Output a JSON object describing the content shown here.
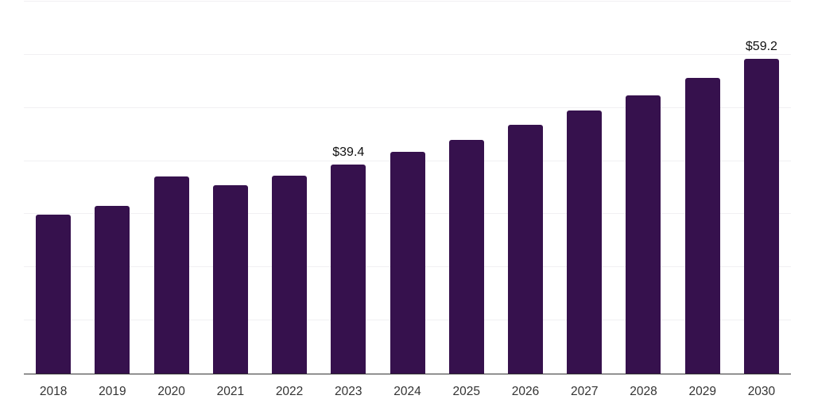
{
  "chart_data": {
    "type": "bar",
    "title": "",
    "categories": [
      "2018",
      "2019",
      "2020",
      "2021",
      "2022",
      "2023",
      "2024",
      "2025",
      "2026",
      "2027",
      "2028",
      "2029",
      "2030"
    ],
    "values": [
      29.9,
      31.6,
      37.1,
      35.4,
      37.3,
      39.4,
      41.7,
      44.0,
      46.8,
      49.5,
      52.4,
      55.7,
      59.2
    ],
    "annotations": [
      {
        "category": "2023",
        "label": "$39.4"
      },
      {
        "category": "2030",
        "label": "$59.2"
      }
    ],
    "value_prefix": "$",
    "xlabel": "",
    "ylabel": "",
    "ylim": [
      0,
      70
    ],
    "grid_step": 10,
    "grid": "horizontal",
    "legend_position": "none",
    "colors": {
      "bar": "#36114d",
      "gridline": "#f1f0f2",
      "axis": "#333333",
      "tick_label": "#333333",
      "annotation": "#111111",
      "background": "#ffffff"
    }
  }
}
